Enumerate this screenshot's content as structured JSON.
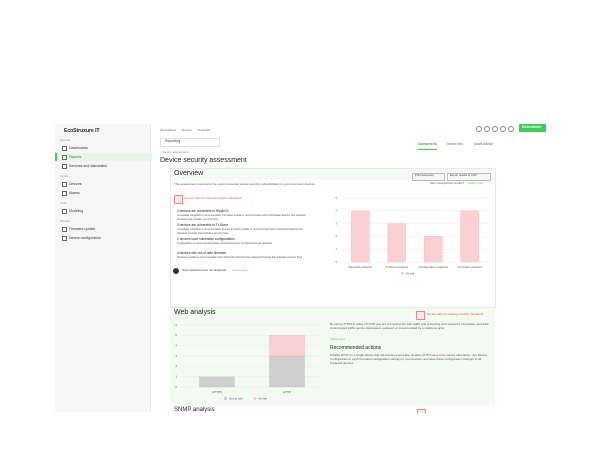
{
  "sidebar": {
    "logo": "EcoStruxure IT",
    "groups": [
      {
        "label": "General",
        "items": [
          "Dashboards",
          "Reports",
          "Services and Warranties"
        ]
      },
      {
        "label": "Assets",
        "items": [
          "Devices",
          "Alarms"
        ]
      },
      {
        "label": "Tools",
        "items": [
          "Modeling"
        ]
      },
      {
        "label": "Manage",
        "items": [
          "Firmware update",
          "Device configuration"
        ]
      }
    ]
  },
  "header": {
    "breadcrumb": [
      "All locations",
      "Europe",
      "Denmark"
    ],
    "dropdown": "Reporting",
    "brand": "Schneider",
    "tabs": [
      "Assessments",
      "Device info",
      "Asset Advisor"
    ],
    "back": "< Device assessment",
    "title": "Device security assessment"
  },
  "overview": {
    "title": "Overview",
    "buttons": [
      "Print document",
      "Export results to CSV"
    ],
    "description": "This assessment represents the current detected device security vulnerabilities for your document devices.",
    "unsupported": "See unsupported results?",
    "learn_more": "Learn more",
    "alert": "You are still not meeting industry standards",
    "findings": [
      {
        "title": "4 devices are vulnerable to Ripple20",
        "text": "Immediate mitigation is recommended. Firmware update is recommended when Schneider Electric has released firmware that includes security fixes."
      },
      {
        "title": "3 devices are vulnerable to TLStorm",
        "text": "Immediate mitigation is recommended. Device firmware update is recommended when Schneider Electric has released firmware that includes security fixes."
      },
      {
        "title": "2 devices have vulnerable configurations",
        "text": "Configuration is recommended when vulnerable device configurations are detected."
      },
      {
        "title": "4 devices with out of date firmware",
        "text": "Firmware update is recommended when Schneider Electric has released firmware that includes security fixes."
      }
    ],
    "footer": "Some devices were not analyzed.",
    "footer_link": "Learn more"
  },
  "web_analysis": {
    "title": "Web analysis",
    "alert": "You are still not meeting industry standards",
    "text": "By using HTTPS in place of HTTP you are encrypting the web traffic and protecting your network's information and data. Unencrypted traffic can be intercepted, replayed, or impersonated by a malicious actor.",
    "more": "Show more",
    "actions_title": "Recommended actions",
    "actions_text": "Disable HTTP on a single device that will receive a template. Enable HTTPS as a more secure alternative. Use Device Configuration to push the latest configuration settings to your devices, and save these configuration changes to all impacted devices."
  },
  "next_section": "SNMP analysis",
  "chart_data": [
    {
      "type": "bar",
      "categories": [
        "Ripple20 analysis",
        "TLStorm analysis",
        "Configuration analysis",
        "Firmware analysis"
      ],
      "series": [
        {
          "name": "At risk",
          "color": "#fbd0d5",
          "values": [
            4,
            3,
            2,
            4
          ]
        }
      ],
      "ylim": [
        0,
        5
      ],
      "yticks": [
        0,
        1,
        2,
        3,
        4,
        5
      ],
      "grid": true,
      "legend": "bottom"
    },
    {
      "type": "bar",
      "stacked": true,
      "categories": [
        "HTTPS",
        "HTTP"
      ],
      "series": [
        {
          "name": "Not at risk",
          "color": "#cfcfcf",
          "values": [
            1,
            3
          ]
        },
        {
          "name": "At risk",
          "color": "#fbd0d5",
          "values": [
            0,
            2
          ]
        }
      ],
      "ylim": [
        0,
        6
      ],
      "yticks": [
        0,
        1,
        2,
        3,
        4,
        5,
        6
      ],
      "grid": true,
      "legend": "bottom"
    }
  ]
}
